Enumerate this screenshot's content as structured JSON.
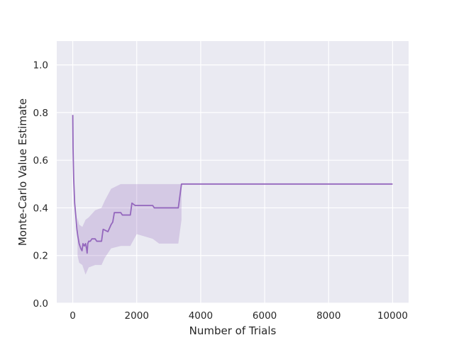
{
  "chart_data": {
    "type": "line",
    "xlabel": "Number of Trials",
    "ylabel": "Monte-Carlo Value Estimate",
    "xlim": [
      -500,
      10500
    ],
    "ylim": [
      0,
      1.1
    ],
    "x_ticks": [
      0,
      2000,
      4000,
      6000,
      8000,
      10000
    ],
    "x_tick_labels": [
      "0",
      "2000",
      "4000",
      "6000",
      "8000",
      "10000"
    ],
    "y_ticks": [
      0.0,
      0.2,
      0.4,
      0.6,
      0.8,
      1.0
    ],
    "y_tick_labels": [
      "0.0",
      "0.2",
      "0.4",
      "0.6",
      "0.8",
      "1.0"
    ],
    "grid": true,
    "background": "#eaeaf2",
    "grid_color": "#ffffff",
    "line_color": "#9467bd",
    "band_color": "#9467bd",
    "series": [
      {
        "values": [
          [
            1,
            0.79
          ],
          [
            10,
            0.65
          ],
          [
            30,
            0.52
          ],
          [
            60,
            0.42
          ],
          [
            100,
            0.36
          ],
          [
            130,
            0.31
          ],
          [
            160,
            0.28
          ],
          [
            200,
            0.25
          ],
          [
            250,
            0.23
          ],
          [
            290,
            0.22
          ],
          [
            320,
            0.25
          ],
          [
            360,
            0.24
          ],
          [
            400,
            0.25
          ],
          [
            430,
            0.23
          ],
          [
            450,
            0.21
          ],
          [
            470,
            0.25
          ],
          [
            500,
            0.26
          ],
          [
            550,
            0.26
          ],
          [
            600,
            0.27
          ],
          [
            700,
            0.27
          ],
          [
            750,
            0.26
          ],
          [
            900,
            0.26
          ],
          [
            950,
            0.31
          ],
          [
            1100,
            0.3
          ],
          [
            1200,
            0.33
          ],
          [
            1250,
            0.34
          ],
          [
            1300,
            0.38
          ],
          [
            1500,
            0.38
          ],
          [
            1550,
            0.37
          ],
          [
            1800,
            0.37
          ],
          [
            1850,
            0.42
          ],
          [
            1950,
            0.41
          ],
          [
            2500,
            0.41
          ],
          [
            2550,
            0.4
          ],
          [
            3300,
            0.4
          ],
          [
            3350,
            0.45
          ],
          [
            3400,
            0.5
          ],
          [
            10000,
            0.5
          ]
        ],
        "band": [
          [
            150,
            0.2,
            0.36
          ],
          [
            200,
            0.17,
            0.33
          ],
          [
            300,
            0.16,
            0.32
          ],
          [
            400,
            0.12,
            0.35
          ],
          [
            500,
            0.15,
            0.36
          ],
          [
            700,
            0.16,
            0.39
          ],
          [
            900,
            0.16,
            0.4
          ],
          [
            1000,
            0.19,
            0.43
          ],
          [
            1200,
            0.23,
            0.48
          ],
          [
            1500,
            0.24,
            0.5
          ],
          [
            1800,
            0.24,
            0.5
          ],
          [
            2000,
            0.29,
            0.5
          ],
          [
            2500,
            0.27,
            0.5
          ],
          [
            2700,
            0.25,
            0.5
          ],
          [
            3300,
            0.25,
            0.5
          ],
          [
            3400,
            0.35,
            0.5
          ]
        ]
      }
    ]
  }
}
